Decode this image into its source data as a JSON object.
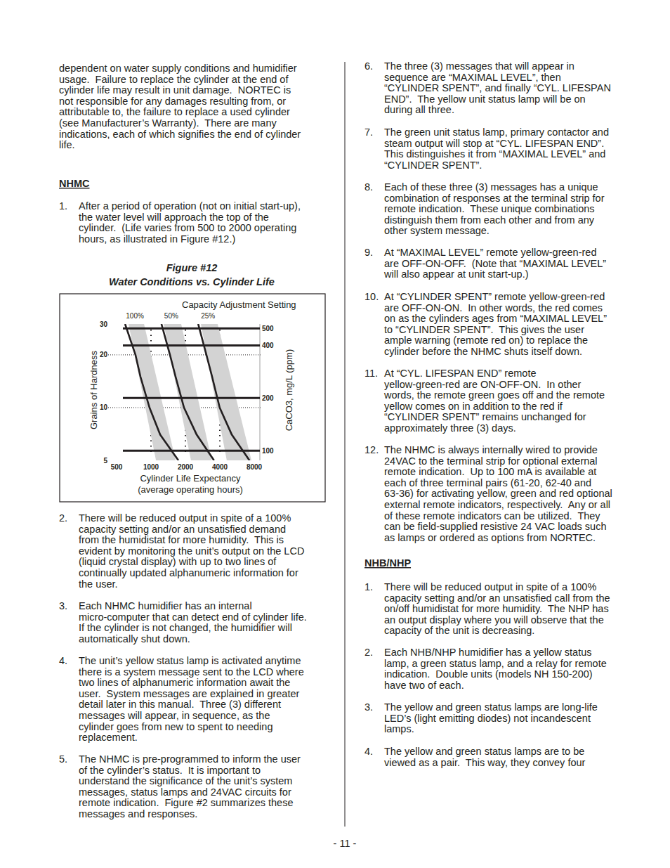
{
  "document": {
    "left_column": [
      {
        "type": "paragraph",
        "lines": [
          "dependent on water supply conditions and humidifier",
          "usage.  Failure to replace the cylinder at the end of",
          "cylinder life may result in unit damage.  NORTEC is",
          "not responsible for any damages resulting from, or",
          "attributable to, the failure to replace a used cylinder",
          "(see Manufacturer’s Warranty).  There are many",
          "indications, each of which signifies the end of cylinder",
          "life."
        ]
      },
      {
        "type": "heading",
        "text": "NHMC"
      },
      {
        "type": "item",
        "number": "1.",
        "lines": [
          "After a period of operation (not on initial start-up),",
          "the water level will approach the top of the",
          "cylinder.  (Life varies from 500 to 2000 operating",
          "hours, as illustrated in Figure #12.)"
        ]
      },
      {
        "type": "item",
        "number": "2.",
        "lines": [
          "There will be reduced output in spite of a 100%",
          "capacity setting and/or an unsatisfied demand",
          "from the humidistat for more humidity.  This is",
          "evident by monitoring the unit’s output on the LCD",
          "(liquid crystal display) with up to two lines of",
          "continually updated alphanumeric information for",
          "the user."
        ]
      },
      {
        "type": "item",
        "number": "3.",
        "lines": [
          "Each NHMC humidifier has an internal",
          "micro-computer that can detect end of cylinder life.",
          "If the cylinder is not changed, the humidifier will",
          "automatically shut down."
        ]
      },
      {
        "type": "item",
        "number": "4.",
        "lines": [
          "The unit’s yellow status lamp is activated anytime",
          "there is a system message sent to the LCD where",
          "two lines of alphanumeric information await the",
          "user.  System messages are explained in greater",
          "detail later in this manual.  Three (3) different",
          "messages will appear, in sequence, as the",
          "cylinder goes from new to spent to needing",
          "replacement."
        ]
      },
      {
        "type": "item",
        "number": "5.",
        "lines": [
          "The NHMC is pre-programmed to inform the user",
          "of the cylinder’s status.  It is important to",
          "understand the significance of the unit’s system",
          "messages, status lamps and 24VAC circuits for",
          "remote indication.  Figure #2 summarizes these",
          "messages and responses."
        ]
      }
    ],
    "right_column": [
      {
        "type": "item",
        "number": "6.",
        "lines": [
          "The three (3) messages that will appear in",
          "sequence are “MAXIMAL LEVEL”, then",
          "“CYLINDER SPENT”, and finally “CYL. LIFESPAN",
          "END”.  The yellow unit status lamp will be on",
          "during all three."
        ]
      },
      {
        "type": "item",
        "number": "7.",
        "lines": [
          "The green unit status lamp, primary contactor and",
          "steam output will stop at “CYL. LIFESPAN END”.",
          "This distinguishes it from “MAXIMAL LEVEL” and",
          "“CYLINDER SPENT”."
        ]
      },
      {
        "type": "item",
        "number": "8.",
        "lines": [
          "Each of these three (3) messages has a unique",
          "combination of responses at the terminal strip for",
          "remote indication.  These unique combinations",
          "distinguish them from each other and from any",
          "other system message."
        ]
      },
      {
        "type": "item",
        "number": "9.",
        "lines": [
          "At “MAXIMAL LEVEL” remote yellow-green-red",
          "are OFF-ON-OFF.  (Note that “MAXIMAL LEVEL”",
          "will also appear at unit start-up.)"
        ]
      },
      {
        "type": "item",
        "number": "10.",
        "lines": [
          "At “CYLINDER SPENT” remote yellow-green-red",
          "are OFF-ON-ON.  In other words, the red comes",
          "on as the cylinders ages from “MAXIMAL LEVEL”",
          "to “CYLINDER SPENT”.  This gives the user",
          "ample warning (remote red on) to replace the",
          "cylinder before the NHMC shuts itself down."
        ]
      },
      {
        "type": "item",
        "number": "11.",
        "lines": [
          "At “CYL. LIFESPAN END” remote",
          "yellow-green-red are ON-OFF-ON.  In other",
          "words, the remote green goes off and the remote",
          "yellow comes on in addition to the red if",
          "“CYLINDER SPENT” remains unchanged for",
          "approximately three (3) days."
        ]
      },
      {
        "type": "item",
        "number": "12.",
        "lines": [
          "The NHMC is always internally wired to provide",
          "24VAC to the terminal strip for optional external",
          "remote indication.  Up to 100 mA is available at",
          "each of three terminal pairs (61-20, 62-40 and",
          "63-36) for activating yellow, green and red optional",
          "external remote indicators, respectively.  Any or all",
          "of these remote indicators can be utilized.  They",
          "can be field-supplied resistive 24 VAC loads such",
          "as lamps or ordered as options from NORTEC."
        ]
      },
      {
        "type": "heading",
        "text": "NHB/NHP"
      },
      {
        "type": "item",
        "number": "1.",
        "lines": [
          "There will be reduced output in spite of a 100%",
          "capacity setting and/or an unsatisfied call from the",
          "on/off humidistat for more humidity.  The NHP has",
          "an output display where you will observe that the",
          "capacity of the unit is decreasing."
        ]
      },
      {
        "type": "item",
        "number": "2.",
        "lines": [
          "Each NHB/NHP humidifier has a yellow status",
          "lamp, a green status lamp, and a relay for remote",
          "indication.  Double units (models NH 150-200)",
          "have two of each."
        ]
      },
      {
        "type": "item",
        "number": "3.",
        "lines": [
          "The yellow and green status lamps are long-life",
          "LED’s (light emitting diodes) not incandescent",
          "lamps."
        ]
      },
      {
        "type": "item",
        "number": "4.",
        "lines": [
          "The yellow and green status lamps are to be",
          "viewed as a pair.  This way, they convey four"
        ]
      }
    ],
    "page_number": "- 11 -"
  },
  "chart_data": {
    "type": "line",
    "title": "Figure #12",
    "subtitle": "Water Conditions vs. Cylinder Life",
    "legend_title": "Capacity Adjustment Setting",
    "x_label": [
      "Cylinder Life Expectancy",
      "(average operating hours)"
    ],
    "y_label": "Grains of Hardness",
    "y2_label": "CaCO3, mg/L (ppm)",
    "log": true,
    "grid": true,
    "xlim": [
      500,
      8000
    ],
    "xticks": [
      500,
      1000,
      2000,
      4000,
      8000
    ],
    "ylim": [
      5,
      30
    ],
    "yticks": [
      5,
      10,
      20,
      30
    ],
    "y2lim": [
      88,
      530
    ],
    "y2ticks": [
      100,
      200,
      400,
      500
    ],
    "series": [
      {
        "name": "100%",
        "color": "#231f20",
        "x": [
          593,
          732,
          809,
          971,
          1203,
          1736
        ],
        "values": [
          30,
          20,
          15,
          10,
          7,
          5
        ],
        "band": {
          "y": [
            30,
            5
          ],
          "x_low": [
            636,
            1105
          ],
          "x_high": [
            869,
            1640
          ]
        }
      },
      {
        "name": "50%",
        "color": "#231f20",
        "x": [
          1234,
          1466,
          1640,
          1944,
          2513,
          3556
        ],
        "values": [
          30,
          20,
          15,
          10,
          7,
          5
        ],
        "band": {
          "y": [
            30,
            5
          ],
          "x_low": [
            1292,
            2236
          ],
          "x_high": [
            1837,
            3400
          ]
        }
      },
      {
        "name": "25%",
        "color": "#231f20",
        "x": [
          2587,
          3055,
          3425,
          3987,
          5094,
          7270
        ],
        "values": [
          30,
          20,
          15,
          10,
          7,
          5
        ],
        "band": {
          "y": [
            30,
            5
          ],
          "x_low": [
            2731,
            4600
          ],
          "x_high": [
            3831,
            7560
          ]
        }
      }
    ]
  }
}
